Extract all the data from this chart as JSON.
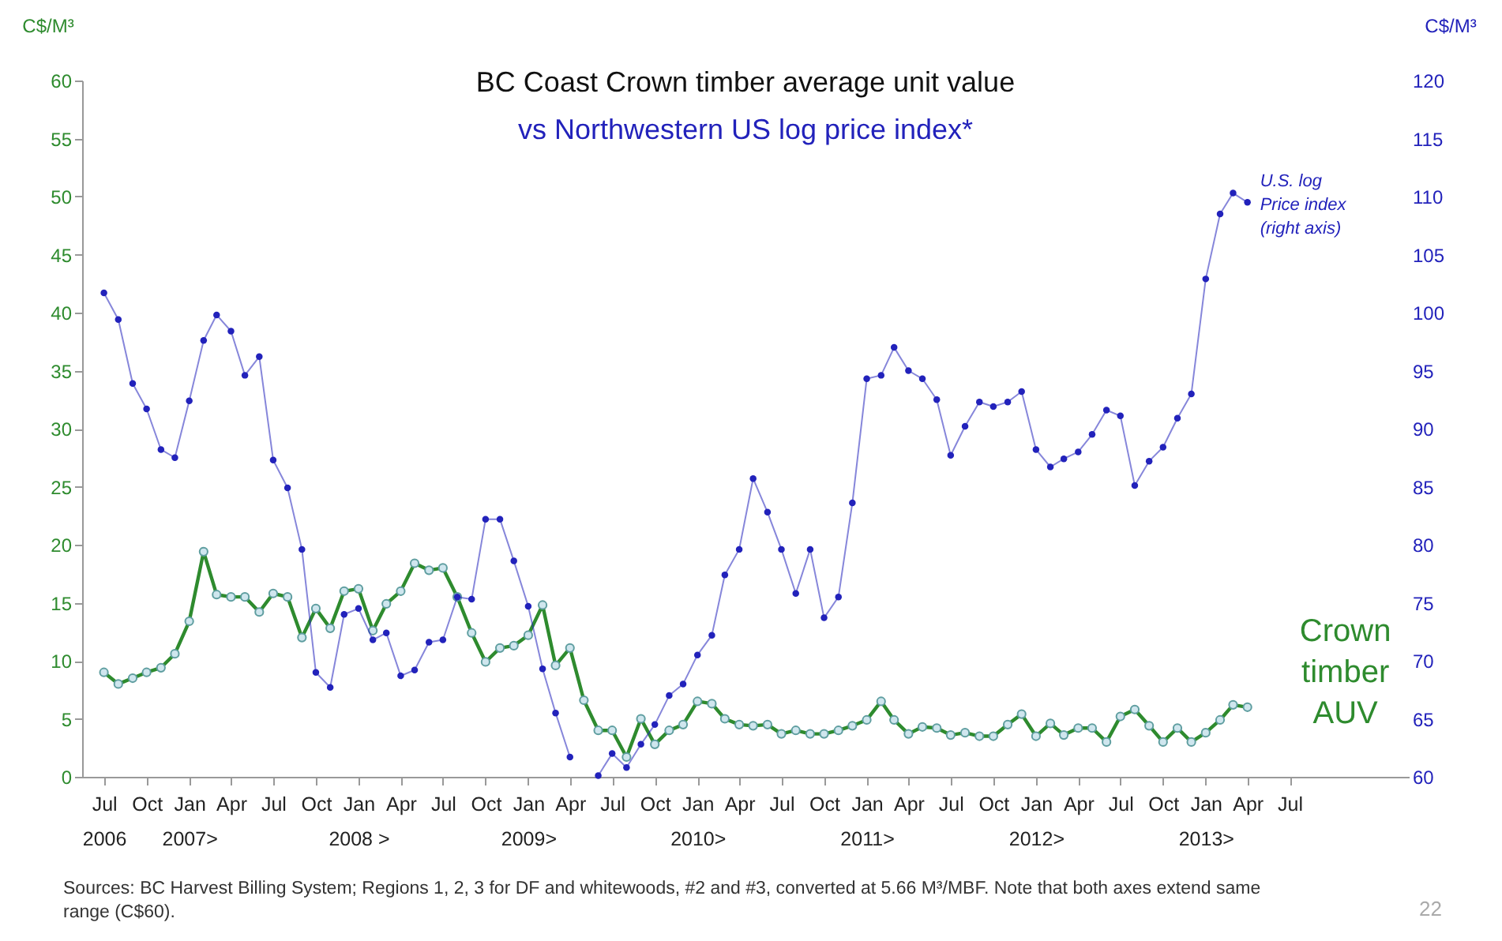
{
  "chart_data": {
    "type": "line",
    "title": "BC Coast Crown timber average unit value",
    "subtitle": "vs Northwestern US log price index*",
    "ylabel": "C$/M³",
    "y2label": "C$/M³",
    "x": [
      "2006-07",
      "2006-08",
      "2006-09",
      "2006-10",
      "2006-11",
      "2006-12",
      "2007-01",
      "2007-02",
      "2007-03",
      "2007-04",
      "2007-05",
      "2007-06",
      "2007-07",
      "2007-08",
      "2007-09",
      "2007-10",
      "2007-11",
      "2007-12",
      "2008-01",
      "2008-02",
      "2008-03",
      "2008-04",
      "2008-05",
      "2008-06",
      "2008-07",
      "2008-08",
      "2008-09",
      "2008-10",
      "2008-11",
      "2008-12",
      "2009-01",
      "2009-02",
      "2009-03",
      "2009-04",
      "2009-05",
      "2009-06",
      "2009-07",
      "2009-08",
      "2009-09",
      "2009-10",
      "2009-11",
      "2009-12",
      "2010-01",
      "2010-02",
      "2010-03",
      "2010-04",
      "2010-05",
      "2010-06",
      "2010-07",
      "2010-08",
      "2010-09",
      "2010-10",
      "2010-11",
      "2010-12",
      "2011-01",
      "2011-02",
      "2011-03",
      "2011-04",
      "2011-05",
      "2011-06",
      "2011-07",
      "2011-08",
      "2011-09",
      "2011-10",
      "2011-11",
      "2011-12",
      "2012-01",
      "2012-02",
      "2012-03",
      "2012-04",
      "2012-05",
      "2012-06",
      "2012-07",
      "2012-08",
      "2012-09",
      "2012-10",
      "2012-11",
      "2012-12",
      "2013-01",
      "2013-02",
      "2013-03",
      "2013-04"
    ],
    "series": [
      {
        "name": "Crown timber AUV",
        "color": "#2e8b2e",
        "values": [
          9,
          8,
          8.5,
          9,
          9.4,
          10.6,
          13.4,
          19.4,
          15.7,
          15.5,
          15.5,
          14.2,
          15.8,
          15.5,
          12,
          14.5,
          12.8,
          16,
          16.2,
          12.6,
          14.9,
          16,
          18.4,
          17.8,
          18,
          15.5,
          12.4,
          9.9,
          11.1,
          11.3,
          12.2,
          14.8,
          9.6,
          11.1,
          6.6,
          4,
          4,
          1.7,
          5,
          2.8,
          4,
          4.5,
          6.5,
          6.3,
          5,
          4.5,
          4.4,
          4.5,
          3.7,
          4,
          3.7,
          3.7,
          4,
          4.4,
          4.9,
          6.5,
          4.9,
          3.7,
          4.3,
          4.2,
          3.6,
          3.8,
          3.5,
          3.5,
          4.5,
          5.4,
          3.5,
          4.6,
          3.6,
          4.2,
          4.2,
          3,
          5.2,
          5.8,
          4.4,
          3,
          4.2,
          3,
          3.8,
          4.9,
          6.2,
          6
        ]
      },
      {
        "name": "U.S. log Price index (right axis)",
        "color": "#2222bb",
        "axis": "y2",
        "values": [
          101.7,
          99.4,
          93.9,
          91.7,
          88.2,
          87.5,
          92.4,
          97.6,
          99.8,
          98.4,
          94.6,
          96.2,
          87.3,
          84.9,
          79.6,
          69,
          67.7,
          74,
          74.5,
          71.8,
          72.4,
          68.7,
          69.2,
          71.6,
          71.8,
          75.5,
          75.3,
          82.2,
          82.2,
          78.6,
          74.7,
          69.3,
          65.5,
          61.7,
          null,
          60.1,
          62,
          60.8,
          62.8,
          64.5,
          67,
          68,
          70.5,
          72.2,
          77.4,
          79.6,
          85.7,
          82.8,
          79.6,
          75.8,
          79.6,
          73.7,
          75.5,
          83.6,
          94.3,
          94.6,
          97,
          95,
          94.3,
          92.5,
          87.7,
          90.2,
          92.3,
          91.9,
          92.3,
          93.2,
          88.2,
          86.7,
          87.4,
          88,
          89.5,
          91.6,
          91.1,
          85.1,
          87.2,
          88.4,
          90.9,
          93,
          102.9,
          108.5,
          110.3,
          109.5
        ]
      }
    ],
    "xlim": [
      "2006-05-15",
      "2014-03-15"
    ],
    "xticks": [
      {
        "value": "2006-07",
        "label": "Jul\n2006"
      },
      {
        "value": "2006-10",
        "label": "Oct"
      },
      {
        "value": "2007-01",
        "label": "Jan\n2007>"
      },
      {
        "value": "2007-04",
        "label": "Apr"
      },
      {
        "value": "2007-07",
        "label": "Jul"
      },
      {
        "value": "2007-10",
        "label": "Oct"
      },
      {
        "value": "2008-01",
        "label": "Jan\n2008 >"
      },
      {
        "value": "2008-04",
        "label": "Apr"
      },
      {
        "value": "2008-07",
        "label": "Jul"
      },
      {
        "value": "2008-10",
        "label": "Oct"
      },
      {
        "value": "2009-01",
        "label": "Jan\n2009>"
      },
      {
        "value": "2009-04",
        "label": "Apr"
      },
      {
        "value": "2009-07",
        "label": "Jul"
      },
      {
        "value": "2009-10",
        "label": "Oct"
      },
      {
        "value": "2010-01",
        "label": "Jan\n2010>"
      },
      {
        "value": "2010-04",
        "label": "Apr"
      },
      {
        "value": "2010-07",
        "label": "Jul"
      },
      {
        "value": "2010-10",
        "label": "Oct"
      },
      {
        "value": "2011-01",
        "label": "Jan\n2011>"
      },
      {
        "value": "2011-04",
        "label": "Apr"
      },
      {
        "value": "2011-07",
        "label": "Jul"
      },
      {
        "value": "2011-10",
        "label": "Oct"
      },
      {
        "value": "2012-01",
        "label": "Jan\n2012>"
      },
      {
        "value": "2012-04",
        "label": "Apr"
      },
      {
        "value": "2012-07",
        "label": "Jul"
      },
      {
        "value": "2012-10",
        "label": "Oct"
      },
      {
        "value": "2013-01",
        "label": "Jan\n2013>"
      },
      {
        "value": "2013-04",
        "label": "Apr"
      },
      {
        "value": "2013-07",
        "label": "Jul"
      }
    ],
    "ylim": [
      0,
      60
    ],
    "yticks": [
      0,
      5,
      10,
      15,
      20,
      25,
      30,
      35,
      40,
      45,
      50,
      55,
      60
    ],
    "y2lim": [
      60,
      120
    ],
    "y2ticks": [
      60,
      65,
      70,
      75,
      80,
      85,
      90,
      95,
      100,
      105,
      110,
      115,
      120
    ],
    "grid": false,
    "marker": "circle",
    "line_style": "solid",
    "annotations": [
      "Sources: BC Harvest Billing System; Regions 1, 2, 3 for DF and whitewoods, #2 and #3, converted at 5.66 M³/MBF.   Note that both axes extend same range (C$60).",
      "22"
    ]
  }
}
